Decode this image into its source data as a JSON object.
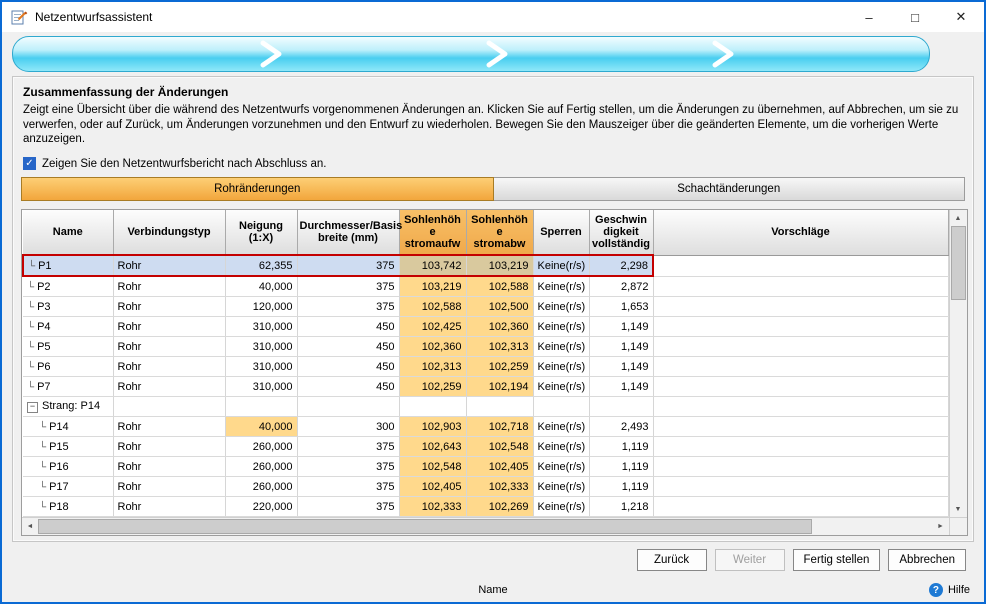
{
  "colors": {
    "window_border": "#0a6ad4",
    "wizard_fill": "#49cef0",
    "tab_active": "#f2a63c",
    "header_highlight": "#f0a94b",
    "cell_highlight": "#ffd98c",
    "selected_row_bg": "#cedcf1",
    "selection_border": "#c40000"
  },
  "window": {
    "title": "Netzentwurfsassistent",
    "minimize": "–",
    "maximize": "□",
    "close": "✕"
  },
  "summary": {
    "title": "Zusammenfassung der Änderungen",
    "description": "Zeigt eine Übersicht über die während des Netzentwurfs vorgenommenen Änderungen an. Klicken Sie auf Fertig stellen, um die Änderungen zu übernehmen, auf Abbrechen, um sie zu verwerfen, oder auf Zurück, um Änderungen vorzunehmen und den Entwurf zu wiederholen. Bewegen Sie den Mauszeiger über die geänderten Elemente, um die vorherigen Werte anzuzeigen."
  },
  "report_checkbox": {
    "label": "Zeigen Sie den Netzentwurfsbericht nach Abschluss an.",
    "checked": true
  },
  "tabs": [
    {
      "label": "Rohränderungen",
      "active": true
    },
    {
      "label": "Schachtänderungen",
      "active": false
    }
  ],
  "table": {
    "columns": [
      "Name",
      "Verbindungstyp",
      "Neigung\n(1:X)",
      "Durchmesser/Basis\nbreite (mm)",
      "Sohlenhöh\ne\nstromaufw",
      "Sohlenhöh\ne\nstromabw",
      "Sperren",
      "Geschwin\ndigkeit\nvollständig",
      "Vorschläge"
    ],
    "rows": [
      {
        "name": "P1",
        "type": "Rohr",
        "slope": "62,355",
        "diameter": "375",
        "invert_up": "103,742",
        "invert_down": "103,219",
        "lock": "Keine(r/s)",
        "velocity": "2,298",
        "selected": true,
        "indent": 1
      },
      {
        "name": "P2",
        "type": "Rohr",
        "slope": "40,000",
        "diameter": "375",
        "invert_up": "103,219",
        "invert_down": "102,588",
        "lock": "Keine(r/s)",
        "velocity": "2,872",
        "indent": 1
      },
      {
        "name": "P3",
        "type": "Rohr",
        "slope": "120,000",
        "diameter": "375",
        "invert_up": "102,588",
        "invert_down": "102,500",
        "lock": "Keine(r/s)",
        "velocity": "1,653",
        "indent": 1
      },
      {
        "name": "P4",
        "type": "Rohr",
        "slope": "310,000",
        "diameter": "450",
        "invert_up": "102,425",
        "invert_down": "102,360",
        "lock": "Keine(r/s)",
        "velocity": "1,149",
        "indent": 1
      },
      {
        "name": "P5",
        "type": "Rohr",
        "slope": "310,000",
        "diameter": "450",
        "invert_up": "102,360",
        "invert_down": "102,313",
        "lock": "Keine(r/s)",
        "velocity": "1,149",
        "indent": 1
      },
      {
        "name": "P6",
        "type": "Rohr",
        "slope": "310,000",
        "diameter": "450",
        "invert_up": "102,313",
        "invert_down": "102,259",
        "lock": "Keine(r/s)",
        "velocity": "1,149",
        "indent": 1
      },
      {
        "name": "P7",
        "type": "Rohr",
        "slope": "310,000",
        "diameter": "450",
        "invert_up": "102,259",
        "invert_down": "102,194",
        "lock": "Keine(r/s)",
        "velocity": "1,149",
        "indent": 1
      },
      {
        "name": "Strang: P14",
        "group": true
      },
      {
        "name": "P14",
        "type": "Rohr",
        "slope": "40,000",
        "slope_changed": true,
        "diameter": "300",
        "invert_up": "102,903",
        "invert_down": "102,718",
        "lock": "Keine(r/s)",
        "velocity": "2,493",
        "indent": 2
      },
      {
        "name": "P15",
        "type": "Rohr",
        "slope": "260,000",
        "diameter": "375",
        "invert_up": "102,643",
        "invert_down": "102,548",
        "lock": "Keine(r/s)",
        "velocity": "1,119",
        "indent": 2
      },
      {
        "name": "P16",
        "type": "Rohr",
        "slope": "260,000",
        "diameter": "375",
        "invert_up": "102,548",
        "invert_down": "102,405",
        "lock": "Keine(r/s)",
        "velocity": "1,119",
        "indent": 2
      },
      {
        "name": "P17",
        "type": "Rohr",
        "slope": "260,000",
        "diameter": "375",
        "invert_up": "102,405",
        "invert_down": "102,333",
        "lock": "Keine(r/s)",
        "velocity": "1,119",
        "indent": 2
      },
      {
        "name": "P18",
        "type": "Rohr",
        "slope": "220,000",
        "diameter": "375",
        "invert_up": "102,333",
        "invert_down": "102,269",
        "lock": "Keine(r/s)",
        "velocity": "1,218",
        "indent": 2
      }
    ]
  },
  "buttons": [
    {
      "label": "Zurück",
      "enabled": true
    },
    {
      "label": "Weiter",
      "enabled": false
    },
    {
      "label": "Fertig stellen",
      "enabled": true
    },
    {
      "label": "Abbrechen",
      "enabled": true
    }
  ],
  "statusbar": {
    "status": "Name",
    "help_label": "Hilfe",
    "help_icon": "?"
  }
}
